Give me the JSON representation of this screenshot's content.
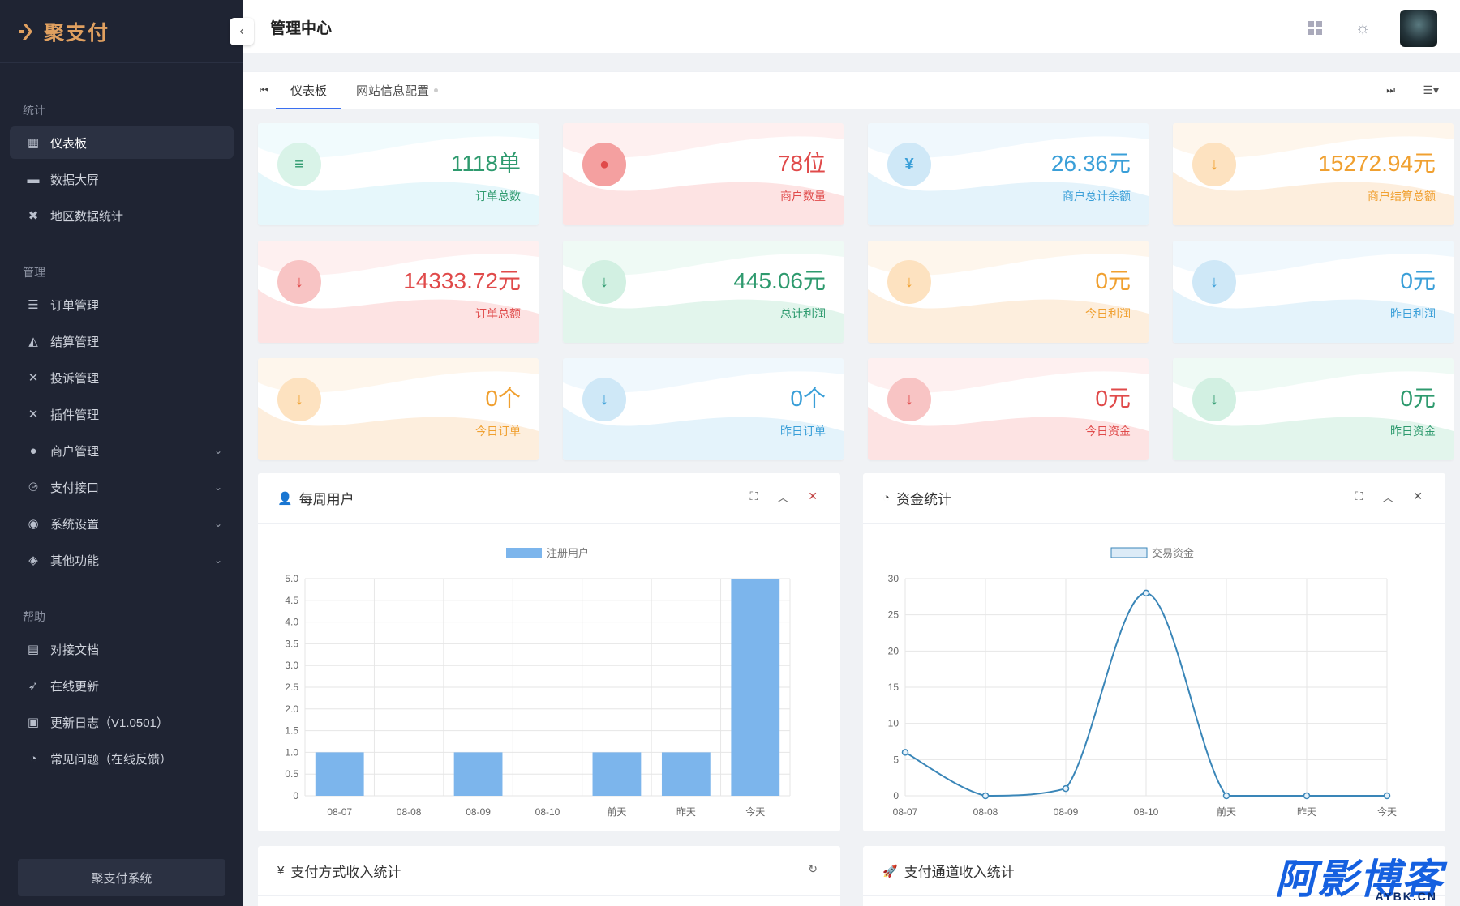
{
  "brand": {
    "name": "聚支付"
  },
  "header": {
    "title": "管理中心"
  },
  "sidebar": {
    "groups": [
      {
        "title": "统计",
        "items": [
          {
            "label": "仪表板",
            "icon": "dashboard-icon",
            "active": true
          },
          {
            "label": "数据大屏",
            "icon": "screen-icon"
          },
          {
            "label": "地区数据统计",
            "icon": "map-icon"
          }
        ]
      },
      {
        "title": "管理",
        "items": [
          {
            "label": "订单管理",
            "icon": "list-icon"
          },
          {
            "label": "结算管理",
            "icon": "triangle-icon"
          },
          {
            "label": "投诉管理",
            "icon": "tools-icon"
          },
          {
            "label": "插件管理",
            "icon": "plugin-icon"
          },
          {
            "label": "商户管理",
            "icon": "user-icon",
            "expandable": true
          },
          {
            "label": "支付接口",
            "icon": "payment-icon",
            "expandable": true
          },
          {
            "label": "系统设置",
            "icon": "settings-icon",
            "expandable": true
          },
          {
            "label": "其他功能",
            "icon": "layers-icon",
            "expandable": true
          }
        ]
      },
      {
        "title": "帮助",
        "items": [
          {
            "label": "对接文档",
            "icon": "doc-icon"
          },
          {
            "label": "在线更新",
            "icon": "rocket-icon"
          },
          {
            "label": "更新日志（V1.0501）",
            "icon": "log-icon"
          },
          {
            "label": "常见问题（在线反馈）",
            "icon": "pie-icon"
          }
        ]
      }
    ],
    "footer": "聚支付系统"
  },
  "tabs": [
    {
      "label": "仪表板",
      "active": true
    },
    {
      "label": "网站信息配置"
    }
  ],
  "stats": [
    {
      "value": "1118单",
      "label": "订单总数",
      "color": "#2e9a6e",
      "bg": "#d9f3e8",
      "wave": "#e6f7fb",
      "icon": "list-icon",
      "glyph": "≡"
    },
    {
      "value": "78位",
      "label": "商户数量",
      "color": "#e04a4a",
      "bg": "#f4a0a0",
      "wave": "#fde3e3",
      "icon": "user-icon",
      "glyph": "●"
    },
    {
      "value": "26.36元",
      "label": "商户总计余额",
      "color": "#3a9fd8",
      "bg": "#cfe8f7",
      "wave": "#e4f3fb",
      "icon": "yen-icon",
      "glyph": "¥"
    },
    {
      "value": "15272.94元",
      "label": "商户结算总额",
      "color": "#f0a030",
      "bg": "#fde2c0",
      "wave": "#fdeedd",
      "icon": "arrow-down-icon",
      "glyph": "↓"
    },
    {
      "value": "14333.72元",
      "label": "订单总额",
      "color": "#e04a4a",
      "bg": "#f8c4c4",
      "wave": "#fde3e3",
      "icon": "arrow-down-icon",
      "glyph": "↓"
    },
    {
      "value": "445.06元",
      "label": "总计利润",
      "color": "#2e9a6e",
      "bg": "#d2f0e2",
      "wave": "#e2f5ec",
      "icon": "arrow-down-icon",
      "glyph": "↓"
    },
    {
      "value": "0元",
      "label": "今日利润",
      "color": "#f0a030",
      "bg": "#fde2c0",
      "wave": "#fdeedd",
      "icon": "arrow-down-icon",
      "glyph": "↓"
    },
    {
      "value": "0元",
      "label": "昨日利润",
      "color": "#3a9fd8",
      "bg": "#cfe8f7",
      "wave": "#e4f3fb",
      "icon": "arrow-down-icon",
      "glyph": "↓"
    },
    {
      "value": "0个",
      "label": "今日订单",
      "color": "#f0a030",
      "bg": "#fde2c0",
      "wave": "#fdeedd",
      "icon": "arrow-down-icon",
      "glyph": "↓"
    },
    {
      "value": "0个",
      "label": "昨日订单",
      "color": "#3a9fd8",
      "bg": "#cfe8f7",
      "wave": "#e4f3fb",
      "icon": "arrow-down-icon",
      "glyph": "↓"
    },
    {
      "value": "0元",
      "label": "今日资金",
      "color": "#e04a4a",
      "bg": "#f8c4c4",
      "wave": "#fde3e3",
      "icon": "arrow-down-icon",
      "glyph": "↓"
    },
    {
      "value": "0元",
      "label": "昨日资金",
      "color": "#2e9a6e",
      "bg": "#d2f0e2",
      "wave": "#e2f5ec",
      "icon": "arrow-down-icon",
      "glyph": "↓"
    }
  ],
  "panels": {
    "weekly_users": {
      "title": "每周用户"
    },
    "funds": {
      "title": "资金统计"
    },
    "pay_method": {
      "title": "支付方式收入统计"
    },
    "pay_channel": {
      "title": "支付通道收入统计"
    }
  },
  "chart_data": [
    {
      "type": "bar",
      "categories": [
        "08-07",
        "08-08",
        "08-09",
        "08-10",
        "前天",
        "昨天",
        "今天"
      ],
      "series": [
        {
          "name": "注册用户",
          "values": [
            1,
            0,
            1,
            0,
            1,
            1,
            5
          ]
        }
      ],
      "ylim": [
        0,
        5
      ],
      "yticks": [
        "0",
        "0.5",
        "1.0",
        "1.5",
        "2.0",
        "2.5",
        "3.0",
        "3.5",
        "4.0",
        "4.5",
        "5.0"
      ],
      "grid": true,
      "legend": "top-center",
      "color": "#7cb5ec"
    },
    {
      "type": "line",
      "categories": [
        "08-07",
        "08-08",
        "08-09",
        "08-10",
        "前天",
        "昨天",
        "今天"
      ],
      "series": [
        {
          "name": "交易资金",
          "values": [
            6,
            0,
            1,
            28,
            0,
            0,
            0
          ]
        }
      ],
      "ylim": [
        0,
        30
      ],
      "yticks": [
        "0",
        "5",
        "10",
        "15",
        "20",
        "25",
        "30"
      ],
      "grid": true,
      "legend": "top-center",
      "color": "#3a86b8"
    }
  ],
  "watermark": {
    "main": "阿影博客",
    "sub": "AYBK.CN"
  }
}
